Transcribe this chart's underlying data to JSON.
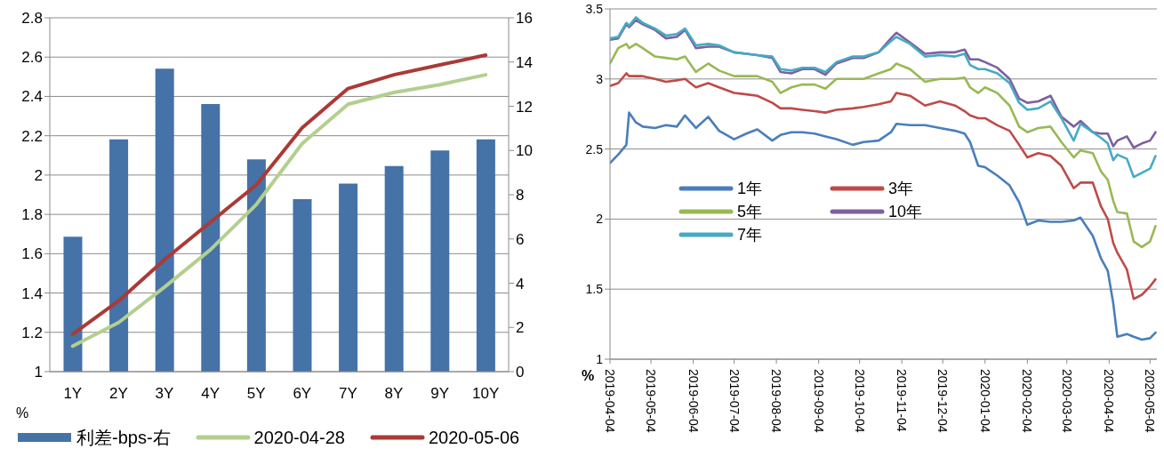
{
  "chart_data": [
    {
      "type": "line",
      "categories": [
        "1Y",
        "2Y",
        "3Y",
        "4Y",
        "5Y",
        "6Y",
        "7Y",
        "8Y",
        "9Y",
        "10Y"
      ],
      "ylabel": "%",
      "ylim": [
        1,
        2.8
      ],
      "yticks": [
        1,
        1.2,
        1.4,
        1.6,
        1.8,
        2,
        2.2,
        2.4,
        2.6,
        2.8
      ],
      "y2lim": [
        0,
        16
      ],
      "y2ticks": [
        0,
        2,
        4,
        6,
        8,
        10,
        12,
        14,
        16
      ],
      "grid": "y",
      "legend": "bottom",
      "series": [
        {
          "name": "利差-bps-右",
          "type": "bar",
          "axis": "y2",
          "color": "#4572a7",
          "values": [
            6.1,
            10.5,
            13.7,
            12.1,
            9.6,
            7.8,
            8.5,
            9.3,
            10.0,
            10.5
          ]
        },
        {
          "name": "2020-04-28",
          "color": "#b3cf8f",
          "values": [
            1.13,
            1.25,
            1.43,
            1.62,
            1.85,
            2.16,
            2.36,
            2.42,
            2.46,
            2.51
          ]
        },
        {
          "name": "2020-05-06",
          "color": "#aa3a36",
          "values": [
            1.19,
            1.36,
            1.57,
            1.76,
            1.95,
            2.24,
            2.44,
            2.51,
            2.56,
            2.61
          ]
        }
      ]
    },
    {
      "type": "line",
      "ylabel": "%",
      "x": [
        "2019-04-04",
        "2019-04-10",
        "2019-04-16",
        "2019-04-18",
        "2019-04-23",
        "2019-04-28",
        "2019-05-07",
        "2019-05-15",
        "2019-05-23",
        "2019-05-29",
        "2019-06-06",
        "2019-06-15",
        "2019-06-23",
        "2019-07-04",
        "2019-07-13",
        "2019-07-21",
        "2019-08-01",
        "2019-08-07",
        "2019-08-15",
        "2019-08-23",
        "2019-09-01",
        "2019-09-09",
        "2019-09-17",
        "2019-09-29",
        "2019-10-07",
        "2019-10-18",
        "2019-10-27",
        "2019-10-31",
        "2019-11-10",
        "2019-11-21",
        "2019-12-02",
        "2019-12-13",
        "2019-12-20",
        "2019-12-24",
        "2019-12-30",
        "2020-01-04",
        "2020-01-13",
        "2020-01-22",
        "2020-01-29",
        "2020-02-04",
        "2020-02-12",
        "2020-02-21",
        "2020-02-29",
        "2020-03-09",
        "2020-03-14",
        "2020-03-23",
        "2020-03-29",
        "2020-04-03",
        "2020-04-07",
        "2020-04-10",
        "2020-04-17",
        "2020-04-22",
        "2020-04-28",
        "2020-05-04",
        "2020-05-08"
      ],
      "xlim": [
        "2019-04-04",
        "2020-05-09"
      ],
      "xticks": [
        "2019-04-04",
        "2019-05-04",
        "2019-06-04",
        "2019-07-04",
        "2019-08-04",
        "2019-09-04",
        "2019-10-04",
        "2019-11-04",
        "2019-12-04",
        "2020-01-04",
        "2020-02-04",
        "2020-03-04",
        "2020-04-04",
        "2020-05-04"
      ],
      "ylim": [
        1,
        3.5
      ],
      "yticks": [
        1,
        1.5,
        2,
        2.5,
        3,
        3.5
      ],
      "grid": "y",
      "legend": "left",
      "series": [
        {
          "name": "1年",
          "color": "#4a7ebb",
          "values": [
            2.4,
            2.46,
            2.53,
            2.76,
            2.69,
            2.66,
            2.65,
            2.67,
            2.66,
            2.74,
            2.65,
            2.73,
            2.63,
            2.57,
            2.61,
            2.64,
            2.56,
            2.6,
            2.62,
            2.62,
            2.61,
            2.59,
            2.57,
            2.53,
            2.55,
            2.56,
            2.62,
            2.68,
            2.67,
            2.67,
            2.65,
            2.63,
            2.61,
            2.55,
            2.38,
            2.37,
            2.31,
            2.24,
            2.12,
            1.96,
            1.99,
            1.98,
            1.98,
            1.99,
            2.01,
            1.88,
            1.72,
            1.63,
            1.4,
            1.16,
            1.18,
            1.16,
            1.14,
            1.15,
            1.19
          ]
        },
        {
          "name": "3年",
          "color": "#be4b48",
          "values": [
            2.95,
            2.97,
            3.04,
            3.02,
            3.02,
            3.02,
            3.0,
            2.98,
            2.99,
            3.0,
            2.94,
            2.97,
            2.94,
            2.9,
            2.89,
            2.88,
            2.83,
            2.79,
            2.79,
            2.78,
            2.77,
            2.76,
            2.78,
            2.79,
            2.8,
            2.82,
            2.84,
            2.9,
            2.88,
            2.81,
            2.84,
            2.81,
            2.77,
            2.74,
            2.72,
            2.72,
            2.67,
            2.63,
            2.53,
            2.44,
            2.47,
            2.45,
            2.38,
            2.22,
            2.26,
            2.26,
            2.09,
            2.0,
            1.83,
            1.76,
            1.64,
            1.43,
            1.46,
            1.52,
            1.57
          ]
        },
        {
          "name": "5年",
          "color": "#98b954",
          "values": [
            3.11,
            3.22,
            3.25,
            3.22,
            3.25,
            3.22,
            3.16,
            3.15,
            3.14,
            3.16,
            3.05,
            3.11,
            3.06,
            3.02,
            3.02,
            3.02,
            2.98,
            2.9,
            2.94,
            2.96,
            2.96,
            2.93,
            3.0,
            3.0,
            3.0,
            3.04,
            3.07,
            3.11,
            3.07,
            2.98,
            3.0,
            3.0,
            3.01,
            2.94,
            2.9,
            2.94,
            2.9,
            2.81,
            2.66,
            2.62,
            2.65,
            2.66,
            2.55,
            2.44,
            2.49,
            2.47,
            2.34,
            2.28,
            2.13,
            2.05,
            2.04,
            1.84,
            1.8,
            1.84,
            1.95
          ]
        },
        {
          "name": "10年",
          "color": "#7d60a0",
          "values": [
            3.28,
            3.29,
            3.39,
            3.37,
            3.42,
            3.39,
            3.35,
            3.29,
            3.3,
            3.35,
            3.22,
            3.23,
            3.23,
            3.19,
            3.18,
            3.17,
            3.15,
            3.05,
            3.04,
            3.07,
            3.07,
            3.03,
            3.11,
            3.15,
            3.15,
            3.19,
            3.29,
            3.33,
            3.26,
            3.18,
            3.19,
            3.19,
            3.21,
            3.14,
            3.14,
            3.12,
            3.08,
            3.0,
            2.86,
            2.83,
            2.84,
            2.88,
            2.73,
            2.66,
            2.7,
            2.62,
            2.61,
            2.61,
            2.52,
            2.56,
            2.59,
            2.51,
            2.54,
            2.56,
            2.62
          ]
        },
        {
          "name": "7年",
          "color": "#46aac5",
          "values": [
            3.29,
            3.3,
            3.4,
            3.38,
            3.44,
            3.4,
            3.36,
            3.31,
            3.32,
            3.36,
            3.24,
            3.25,
            3.24,
            3.19,
            3.18,
            3.17,
            3.16,
            3.07,
            3.06,
            3.08,
            3.08,
            3.05,
            3.12,
            3.16,
            3.16,
            3.19,
            3.27,
            3.3,
            3.25,
            3.16,
            3.17,
            3.16,
            3.18,
            3.1,
            3.07,
            3.07,
            3.04,
            2.97,
            2.83,
            2.78,
            2.79,
            2.84,
            2.72,
            2.56,
            2.68,
            2.62,
            2.58,
            2.54,
            2.42,
            2.46,
            2.43,
            2.3,
            2.33,
            2.36,
            2.45
          ]
        }
      ]
    }
  ]
}
